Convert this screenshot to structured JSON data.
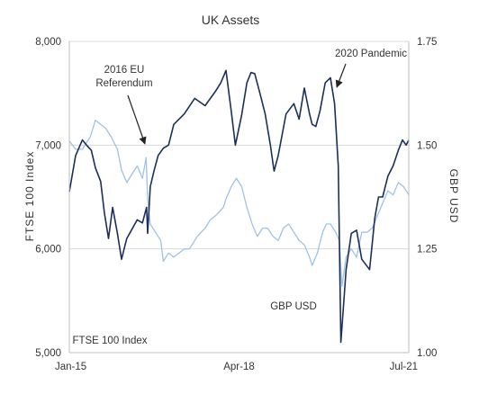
{
  "chart_data": {
    "type": "line",
    "title": "UK Assets",
    "left_axis": {
      "label": "FTSE 100 Index",
      "ylim": [
        5000,
        8000
      ],
      "ticks": [
        "5,000",
        "6,000",
        "7,000",
        "8,000"
      ],
      "tick_values": [
        5000,
        6000,
        7000,
        8000
      ]
    },
    "right_axis": {
      "label": "GBP USD",
      "ylim": [
        1.0,
        1.75
      ],
      "ticks": [
        "1.00",
        "1.25",
        "1.50",
        "1.75"
      ],
      "tick_values": [
        1.0,
        1.25,
        1.5,
        1.75
      ]
    },
    "x_range": [
      "Jan-15",
      "Jul-21"
    ],
    "x_ticks": [
      "Jan-15",
      "Apr-18",
      "Jul-21"
    ],
    "x_tick_positions": [
      2015.0,
      2018.25,
      2021.5
    ],
    "grid": "horizontal",
    "series": [
      {
        "key": "ftse",
        "axis": "left",
        "color": "#1b2f5c",
        "x": [
          2015.0,
          2015.12,
          2015.25,
          2015.33,
          2015.42,
          2015.5,
          2015.6,
          2015.67,
          2015.75,
          2015.83,
          2015.92,
          2016.0,
          2016.1,
          2016.2,
          2016.3,
          2016.4,
          2016.48,
          2016.5,
          2016.55,
          2016.62,
          2016.7,
          2016.8,
          2016.9,
          2017.0,
          2017.2,
          2017.4,
          2017.6,
          2017.8,
          2017.9,
          2018.0,
          2018.1,
          2018.18,
          2018.3,
          2018.4,
          2018.48,
          2018.55,
          2018.65,
          2018.75,
          2018.85,
          2018.92,
          2019.0,
          2019.15,
          2019.3,
          2019.4,
          2019.5,
          2019.6,
          2019.65,
          2019.72,
          2019.8,
          2019.9,
          2020.0,
          2020.08,
          2020.15,
          2020.2,
          2020.3,
          2020.4,
          2020.5,
          2020.6,
          2020.75,
          2020.85,
          2020.92,
          2021.0,
          2021.1,
          2021.2,
          2021.3,
          2021.38,
          2021.45,
          2021.5
        ],
        "y": [
          6550,
          6900,
          7050,
          7000,
          6950,
          6780,
          6650,
          6350,
          6100,
          6400,
          6150,
          5900,
          6100,
          6190,
          6280,
          6250,
          6400,
          6150,
          6600,
          6750,
          6900,
          6970,
          7000,
          7200,
          7300,
          7450,
          7380,
          7520,
          7600,
          7720,
          7330,
          7000,
          7290,
          7600,
          7700,
          7690,
          7500,
          7300,
          7000,
          6750,
          6900,
          7300,
          7400,
          7250,
          7550,
          7300,
          7200,
          7180,
          7330,
          7600,
          7650,
          7400,
          6800,
          5100,
          5800,
          6150,
          6180,
          5900,
          5800,
          6300,
          6500,
          6500,
          6700,
          6800,
          6950,
          7050,
          7000,
          7050
        ]
      },
      {
        "key": "gbp",
        "axis": "right",
        "color": "#9dc3e6",
        "x": [
          2015.0,
          2015.12,
          2015.25,
          2015.4,
          2015.5,
          2015.6,
          2015.7,
          2015.8,
          2015.92,
          2016.0,
          2016.1,
          2016.2,
          2016.3,
          2016.4,
          2016.47,
          2016.5,
          2016.55,
          2016.65,
          2016.75,
          2016.8,
          2016.9,
          2017.0,
          2017.2,
          2017.3,
          2017.45,
          2017.6,
          2017.7,
          2017.8,
          2017.95,
          2018.0,
          2018.1,
          2018.2,
          2018.3,
          2018.4,
          2018.5,
          2018.6,
          2018.7,
          2018.8,
          2018.9,
          2019.0,
          2019.1,
          2019.2,
          2019.3,
          2019.4,
          2019.5,
          2019.6,
          2019.65,
          2019.75,
          2019.85,
          2019.92,
          2020.0,
          2020.1,
          2020.17,
          2020.22,
          2020.3,
          2020.4,
          2020.5,
          2020.6,
          2020.7,
          2020.8,
          2020.9,
          2021.0,
          2021.1,
          2021.2,
          2021.3,
          2021.4,
          2021.5
        ],
        "y": [
          1.51,
          1.49,
          1.49,
          1.52,
          1.56,
          1.55,
          1.54,
          1.52,
          1.49,
          1.44,
          1.41,
          1.43,
          1.45,
          1.42,
          1.47,
          1.37,
          1.31,
          1.29,
          1.27,
          1.22,
          1.24,
          1.23,
          1.25,
          1.25,
          1.28,
          1.3,
          1.32,
          1.33,
          1.35,
          1.37,
          1.4,
          1.42,
          1.4,
          1.35,
          1.31,
          1.28,
          1.3,
          1.3,
          1.28,
          1.27,
          1.3,
          1.31,
          1.29,
          1.27,
          1.26,
          1.23,
          1.21,
          1.24,
          1.29,
          1.31,
          1.31,
          1.29,
          1.27,
          1.16,
          1.23,
          1.25,
          1.23,
          1.29,
          1.29,
          1.3,
          1.33,
          1.36,
          1.39,
          1.38,
          1.41,
          1.4,
          1.38
        ]
      }
    ],
    "annotations": [
      {
        "key": "ref_line1",
        "text": "2016 EU"
      },
      {
        "key": "ref_line2",
        "text": "Referendum"
      },
      {
        "key": "pandemic",
        "text": "2020  Pandemic"
      },
      {
        "key": "ftse_label",
        "text": "FTSE 100 Index"
      },
      {
        "key": "gbp_label",
        "text": "GBP USD"
      }
    ]
  }
}
